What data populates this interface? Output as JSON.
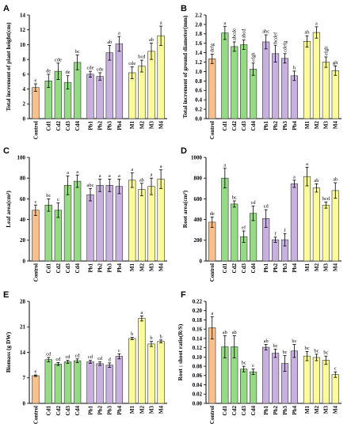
{
  "colors": {
    "control": "#f9c08d",
    "cd": "#96da86",
    "pb": "#c9b1df",
    "m": "#fbfb9b",
    "stroke": "#000000"
  },
  "groups": [
    "control",
    "cd",
    "cd",
    "cd",
    "cd",
    "pb",
    "pb",
    "pb",
    "pb",
    "m",
    "m",
    "m",
    "m"
  ],
  "chart_data": [
    {
      "panel": "A",
      "type": "bar",
      "categories": [
        "Control",
        "Cd1",
        "Cd2",
        "Cd3",
        "Cd4",
        "Pb1",
        "Pb2",
        "Pb3",
        "Pb4",
        "M1",
        "M2",
        "M3",
        "M4"
      ],
      "values": [
        4.2,
        5.1,
        6.4,
        4.9,
        7.6,
        6.0,
        5.7,
        8.9,
        10.1,
        6.2,
        7.1,
        9.1,
        11.2
      ],
      "errors": [
        0.5,
        0.9,
        1.1,
        0.9,
        1.0,
        0.4,
        0.5,
        1.0,
        1.0,
        0.8,
        0.8,
        1.1,
        1.3
      ],
      "labels": [
        "e",
        "de",
        "cde",
        "de",
        "bc",
        "cde",
        "cde",
        "ab",
        "a",
        "cde",
        "bcd",
        "ab",
        "a"
      ],
      "ylabel": "Total increment of plant height(cm)",
      "ylim": [
        0,
        14
      ],
      "yticks": [
        0,
        2,
        4,
        6,
        8,
        10,
        12,
        14
      ]
    },
    {
      "panel": "B",
      "type": "bar",
      "categories": [
        "Control",
        "Cd1",
        "Cd2",
        "Cd3",
        "Cd4",
        "Pb1",
        "Pb2",
        "Pb3",
        "Pb4",
        "M1",
        "M2",
        "M3",
        "M4"
      ],
      "values": [
        1.27,
        1.82,
        1.53,
        1.57,
        1.05,
        1.63,
        1.38,
        1.28,
        0.91,
        1.64,
        1.83,
        1.2,
        1.02
      ],
      "errors": [
        0.1,
        0.14,
        0.1,
        0.1,
        0.13,
        0.15,
        0.18,
        0.1,
        0.1,
        0.12,
        0.12,
        0.11,
        0.1
      ],
      "labels": [
        "defg",
        "a",
        "abcde",
        "abcd",
        "efgh",
        "abc",
        "bcdef",
        "cdefg",
        "h",
        "ab",
        "a",
        "efgh",
        "gh"
      ],
      "ylabel": "Total increment of ground diameter(mm)",
      "ylim": [
        0,
        2.2
      ],
      "yticks": [
        0.0,
        0.2,
        0.4,
        0.6,
        0.8,
        1.0,
        1.2,
        1.4,
        1.6,
        1.8,
        2.0,
        2.2
      ]
    },
    {
      "panel": "C",
      "type": "bar",
      "categories": [
        "Control",
        "Cd1",
        "Cd2",
        "Cd3",
        "Cd4",
        "Pb1",
        "Pb2",
        "Pb3",
        "Pb4",
        "M1",
        "M2",
        "M3",
        "M4"
      ],
      "values": [
        49,
        54,
        49,
        73,
        77,
        64,
        73,
        73,
        72,
        78,
        69,
        72,
        79
      ],
      "errors": [
        5,
        6,
        7,
        9,
        6,
        6,
        6,
        6,
        7,
        7,
        6,
        8,
        9
      ],
      "labels": [
        "c",
        "bc",
        "c",
        "a",
        "a",
        "abc",
        "a",
        "a",
        "a",
        "a",
        "ab",
        "a",
        "a"
      ],
      "ylabel": "Leaf area(cm²)",
      "ylim": [
        0,
        100
      ],
      "yticks": [
        0,
        20,
        40,
        60,
        80,
        100
      ]
    },
    {
      "panel": "D",
      "type": "bar",
      "categories": [
        "Control",
        "Cd1",
        "Cd2",
        "Cd3",
        "Cd4",
        "Pb1",
        "Pb2",
        "Pb3",
        "Pb4",
        "M1",
        "M2",
        "M3",
        "M4"
      ],
      "values": [
        375,
        800,
        550,
        235,
        460,
        410,
        205,
        205,
        745,
        815,
        705,
        540,
        680
      ],
      "errors": [
        50,
        95,
        30,
        55,
        70,
        85,
        25,
        60,
        35,
        90,
        40,
        30,
        75
      ],
      "labels": [
        "de",
        "a",
        "bc",
        "ef",
        "cd",
        "cd",
        "f",
        "f",
        "a",
        "a",
        "ab",
        "bcd",
        "ab"
      ],
      "ylabel": "Root area(cm²)",
      "ylim": [
        0,
        1000
      ],
      "yticks": [
        0,
        200,
        400,
        600,
        800,
        1000
      ]
    },
    {
      "panel": "E",
      "type": "bar",
      "categories": [
        "Control",
        "Cd1",
        "Cd2",
        "Cd3",
        "Cd4",
        "Pb1",
        "Pb2",
        "Pb3",
        "Pb4",
        "M1",
        "M2",
        "M3",
        "M4"
      ],
      "values": [
        7.6,
        12.0,
        10.8,
        11.4,
        11.7,
        11.4,
        10.9,
        10.5,
        12.9,
        17.8,
        23.3,
        16.3,
        17.0
      ],
      "errors": [
        0.2,
        0.6,
        0.4,
        0.4,
        0.5,
        0.4,
        0.5,
        0.6,
        0.7,
        0.3,
        0.7,
        0.7,
        0.4
      ],
      "labels": [
        "e",
        "cd",
        "cd",
        "cd",
        "cd",
        "cd",
        "cd",
        "d",
        "c",
        "b",
        "a",
        "b",
        "b"
      ],
      "ylabel": "Biomass (g DW)",
      "ylim": [
        0,
        28
      ],
      "yticks": [
        0,
        7,
        14,
        21,
        28
      ]
    },
    {
      "panel": "F",
      "type": "bar",
      "categories": [
        "Control",
        "Cd1",
        "Cd2",
        "Cd3",
        "Cd4",
        "Pb1",
        "Pb2",
        "Pb3",
        "Pb4",
        "M1",
        "M2",
        "M3",
        "M4"
      ],
      "values": [
        0.163,
        0.122,
        0.122,
        0.074,
        0.068,
        0.121,
        0.108,
        0.086,
        0.113,
        0.102,
        0.099,
        0.093,
        0.062
      ],
      "errors": [
        0.024,
        0.024,
        0.024,
        0.006,
        0.006,
        0.006,
        0.009,
        0.017,
        0.014,
        0.01,
        0.007,
        0.009,
        0.006
      ],
      "labels": [
        "a",
        "ab",
        "ab",
        "bc",
        "c",
        "ab",
        "bc",
        "bc",
        "bc",
        "bc",
        "bc",
        "bc",
        "c"
      ],
      "ylabel": "Root : shoot ratio(R/S)",
      "ylim": [
        0,
        0.22
      ],
      "yticks": [
        0.0,
        0.02,
        0.04,
        0.06,
        0.08,
        0.1,
        0.12,
        0.14,
        0.16,
        0.18,
        0.2,
        0.22
      ],
      "ytick_labels": [
        "0.00",
        "0.02",
        "0.04",
        "0.06",
        "0.08",
        "0.10",
        "0.12",
        "0.14",
        "0.16",
        "0.18",
        "0.20",
        "0.22"
      ]
    }
  ]
}
